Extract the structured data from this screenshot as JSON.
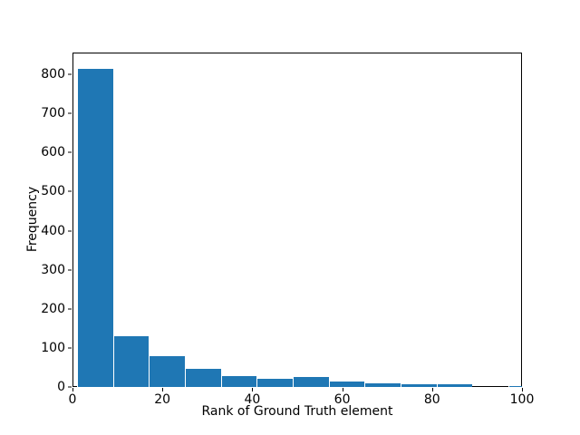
{
  "figure": {
    "background": "#ffffff",
    "spine_color": "#000000",
    "text_color": "#000000"
  },
  "chart_data": {
    "type": "bar",
    "subtype": "histogram",
    "title": "",
    "xlabel": "Rank of Ground Truth element",
    "ylabel": "Frequency",
    "xlim": [
      0,
      100
    ],
    "ylim": [
      0,
      856
    ],
    "x_ticks": [
      0,
      20,
      40,
      60,
      80,
      100
    ],
    "y_ticks": [
      0,
      100,
      200,
      300,
      400,
      500,
      600,
      700,
      800
    ],
    "bin_edges": [
      1,
      9,
      17,
      25,
      33,
      41,
      49,
      57,
      65,
      73,
      81,
      89,
      97,
      105
    ],
    "counts": [
      815,
      130,
      78,
      47,
      28,
      22,
      26,
      13,
      10,
      7,
      8,
      0,
      3
    ],
    "bar_color": "#1f77b4",
    "grid": false,
    "legend": false
  }
}
